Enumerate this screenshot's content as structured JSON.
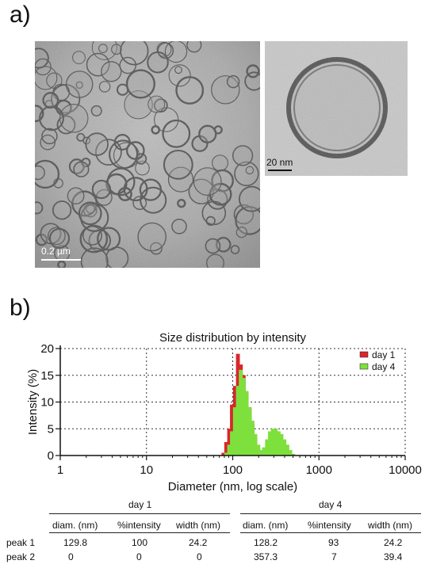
{
  "panel_a": {
    "label": "a)",
    "left_micrograph": {
      "scale_bar_label": "0.2 µm"
    },
    "right_micrograph": {
      "scale_bar_label": "20 nm"
    }
  },
  "panel_b": {
    "label": "b)"
  },
  "chart_data": {
    "type": "bar",
    "title": "Size distribution by intensity",
    "xlabel": "Diameter (nm, log scale)",
    "ylabel": "Intensity (%)",
    "xscale": "log",
    "xlim": [
      1,
      10000
    ],
    "ylim": [
      0,
      20
    ],
    "xticks": [
      "1",
      "10",
      "100",
      "1000",
      "10000"
    ],
    "yticks": [
      "0",
      "5",
      "10",
      "15",
      "20"
    ],
    "grid": "dotted",
    "legend_position": "top-right",
    "series": [
      {
        "name": "day 1",
        "color": "#d9262b",
        "x": [
          78,
          84,
          91,
          98,
          106,
          115,
          124,
          134,
          145,
          157,
          169,
          183,
          198
        ],
        "values": [
          0.5,
          2.5,
          5.0,
          9.5,
          13.0,
          19.0,
          17.0,
          15.0,
          12.0,
          9.0,
          6.0,
          3.5,
          1.0
        ]
      },
      {
        "name": "day 4",
        "color": "#7ee03c",
        "x": [
          84,
          91,
          98,
          106,
          115,
          124,
          134,
          145,
          157,
          169,
          183,
          198,
          214,
          231,
          250,
          270,
          292,
          315,
          341,
          368,
          398,
          430,
          465,
          502
        ],
        "values": [
          0.5,
          2.0,
          4.5,
          9.0,
          13.0,
          16.0,
          14.5,
          12.0,
          9.0,
          6.5,
          4.0,
          2.0,
          1.0,
          1.5,
          3.0,
          4.5,
          5.0,
          5.0,
          4.5,
          4.0,
          3.0,
          2.0,
          1.0,
          0.3
        ]
      }
    ]
  },
  "table": {
    "groups": [
      "day 1",
      "day 4"
    ],
    "headers": [
      "diam. (nm)",
      "%intensity",
      "width (nm)",
      "diam. (nm)",
      "%intensity",
      "width (nm)"
    ],
    "rows": [
      {
        "label": "peak 1",
        "cells": [
          "129.8",
          "100",
          "24.2",
          "128.2",
          "93",
          "24.2"
        ]
      },
      {
        "label": "peak 2",
        "cells": [
          "0",
          "0",
          "0",
          "357.3",
          "7",
          "39.4"
        ]
      }
    ]
  }
}
